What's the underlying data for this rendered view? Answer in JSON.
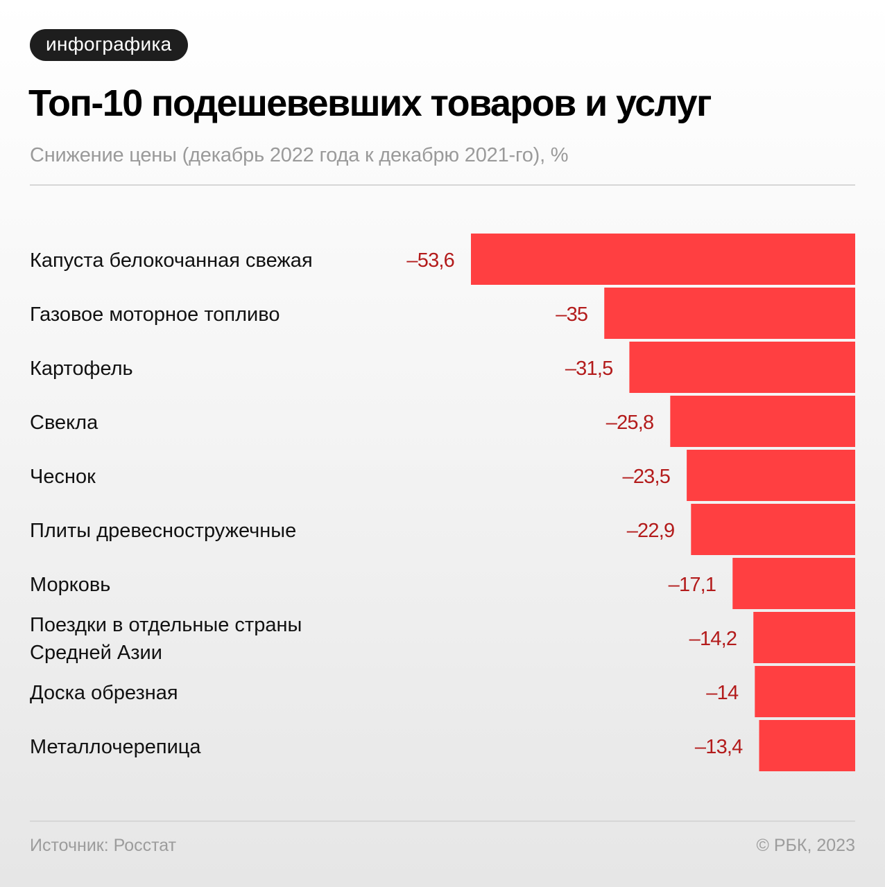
{
  "badge": "инфографика",
  "title": "Топ-10 подешевевших товаров и услуг",
  "subtitle": "Снижение цены (декабрь 2022 года к декабрю 2021-го), %",
  "footer": {
    "source": "Источник: Росстат",
    "copyright": "© РБК, 2023"
  },
  "colors": {
    "bar": "#ff3f41",
    "value_label": "#b31b1b",
    "category_label": "#111111"
  },
  "chart_data": {
    "type": "bar",
    "orientation": "horizontal",
    "title": "Топ-10 подешевевших товаров и услуг",
    "subtitle": "Снижение цены (декабрь 2022 года к декабрю 2021-го), %",
    "xlabel": "",
    "ylabel": "",
    "xlim": [
      -53.6,
      0
    ],
    "grid": false,
    "legend": "none",
    "categories": [
      "Капуста белокочанная свежая",
      "Газовое моторное топливо",
      "Картофель",
      "Свекла",
      "Чеснок",
      "Плиты древесностружечные",
      "Морковь",
      "Поездки в отдельные страны\nСредней Азии",
      "Доска обрезная",
      "Металлочерепица"
    ],
    "values": [
      -53.6,
      -35,
      -31.5,
      -25.8,
      -23.5,
      -22.9,
      -17.1,
      -14.2,
      -14,
      -13.4
    ],
    "value_labels": [
      "–53,6",
      "–35",
      "–31,5",
      "–25,8",
      "–23,5",
      "–22,9",
      "–17,1",
      "–14,2",
      "–14",
      "–13,4"
    ]
  }
}
